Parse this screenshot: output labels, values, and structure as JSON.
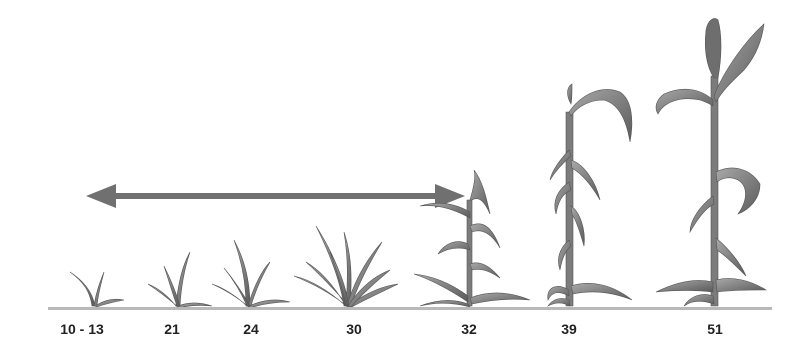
{
  "stages": [
    {
      "label": "10 - 13"
    },
    {
      "label": "21"
    },
    {
      "label": "24"
    },
    {
      "label": "30"
    },
    {
      "label": "32"
    },
    {
      "label": "39"
    },
    {
      "label": "51"
    }
  ],
  "arrow": {
    "from_stage": "10 - 13",
    "to_stage": "32",
    "direction": "double-headed"
  },
  "colors": {
    "plant": "#8a8a8a",
    "plant_dark": "#5e5e5e",
    "arrow": "#707070",
    "ground": "#b9b9b9",
    "label": "#222222"
  }
}
